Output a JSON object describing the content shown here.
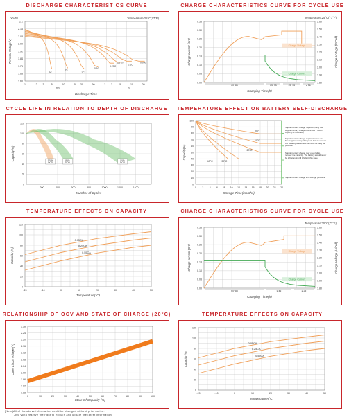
{
  "colors": {
    "frame": "#c8262b",
    "orange": "#f0a05a",
    "green": "#44aa55",
    "grid": "#888888",
    "band": "#f07b1c"
  },
  "titles": {
    "discharge": "DISCHARGE CHARACTERISTICS CURVE",
    "charge_cycle_1": "CHARGE CHARACTERISTICS CURVE FOR CYCLE USE",
    "cycle_life": "CYCLE LIFE IN RELATION TO DEPTH OF DISCHARGE",
    "self_discharge": "TEMPERATURE EFFECT ON BATTERY SELF-DISCHARGE",
    "capacity_1": "TEMPERATURE EFFECTS ON CAPACITY",
    "charge_cycle_2": "CHARGE CHARACTERISTICS CURVE FOR CYCLE USE",
    "ocv": "RELATIONSHIP OF OCV AND STATE OF CHARGE (20°C)",
    "capacity_2": "TEMPERATURE EFFECTS ON CAPACITY"
  },
  "notes": {
    "line1": "[Note]All of the above information could be changed without prior notice.",
    "line2": "JBS Volta reserve the right to explain and update the latest information"
  },
  "chart_data": [
    {
      "id": "discharge",
      "type": "line",
      "temp_label": "Temperature:25°C(77°F)",
      "xlabel": "Discharge Time",
      "ylabel": "Terminal Voltage(V)",
      "y_unit": "(V/Cell)",
      "ylim": [
        1.6,
        2.2
      ],
      "yticks": [
        "2.2",
        "2.16",
        "2.08",
        "2.00",
        "1.92",
        "1.84",
        "1.76",
        "1.68",
        "1.60"
      ],
      "xticks_min": [
        "1",
        "2",
        "3",
        "5",
        "10",
        "20",
        "30",
        "60"
      ],
      "xticks_h": [
        "2",
        "3",
        "5",
        "10",
        "20"
      ],
      "xunit_min": "min",
      "xunit_h": "h",
      "series": [
        {
          "name": "3C",
          "end_min": 5,
          "end_v": 1.72
        },
        {
          "name": "2C",
          "end_min": 13,
          "end_v": 1.73
        },
        {
          "name": "1C",
          "end_min": 35,
          "end_v": 1.72
        },
        {
          "name": "0.6C",
          "end_min": 80,
          "end_v": 1.74
        },
        {
          "name": "0.25C",
          "end_min": 210,
          "end_v": 1.78
        },
        {
          "name": "0.17C",
          "end_min": 330,
          "end_v": 1.79
        },
        {
          "name": "0.1C",
          "end_min": 600,
          "end_v": 1.8
        },
        {
          "name": "0.05C",
          "end_min": 1300,
          "end_v": 1.8
        }
      ]
    },
    {
      "id": "charge_cycle_1",
      "type": "line",
      "temp_label": "Temperature:25°C(77°F)",
      "xlabel": "Charging Time(h)",
      "ylabel_left": "Charge current (CA)",
      "ylabel_right": "Charge Voltage (V/Cell)",
      "ylim_left": [
        0,
        0.35
      ],
      "ylim_right": [
        1.8,
        2.6
      ],
      "yticks_left": [
        "0.35",
        "0.30",
        "0.25",
        "0.20",
        "0.15",
        "0.10",
        "0.05",
        "0.00"
      ],
      "yticks_right": [
        "2.60",
        "2.50",
        "2.40",
        "2.30",
        "2.20",
        "2.10",
        "2.00",
        "1.90",
        "1.80"
      ],
      "xsegments": [
        "60~85",
        "25~35",
        "25~35",
        "≥ 56"
      ],
      "series": [
        {
          "name": "Charge Voltage",
          "color": "orange"
        },
        {
          "name": "Charge Current",
          "color": "green"
        }
      ]
    },
    {
      "id": "cycle_life",
      "type": "area",
      "xlabel": "Number of Cycles",
      "ylabel": "Capacity(%)",
      "xlim": [
        0,
        1600
      ],
      "ylim": [
        0,
        120
      ],
      "xticks": [
        "200",
        "400",
        "600",
        "800",
        "1000",
        "1200",
        "1400"
      ],
      "yticks": [
        "120",
        "100",
        "80",
        "60",
        "40",
        "20",
        "0"
      ],
      "series": [
        {
          "name": "100% DOD",
          "end_cycles": 350
        },
        {
          "name": "80% DOD",
          "end_cycles": 600
        },
        {
          "name": "50% DOD",
          "end_cycles": 1400
        }
      ]
    },
    {
      "id": "self_discharge",
      "type": "line",
      "xlabel": "Storage Time(months)",
      "ylabel": "Capacity(%)",
      "xlim": [
        0,
        24
      ],
      "ylim": [
        0,
        100
      ],
      "xticks": [
        "0",
        "2",
        "4",
        "6",
        "8",
        "10",
        "12",
        "14",
        "16",
        "18",
        "20",
        "22",
        "24"
      ],
      "yticks": [
        "100",
        "90",
        "80",
        "70",
        "60",
        "50",
        "40",
        "30",
        "20",
        "10",
        "0"
      ],
      "series": [
        {
          "name": "0°C",
          "end_month": 18
        },
        {
          "name": "10°C",
          "end_month": 18
        },
        {
          "name": "20°C",
          "end_month": 18
        },
        {
          "name": "30°C",
          "end_month": 12
        },
        {
          "name": "40°C",
          "end_month": 9
        }
      ],
      "annotations": [
        "Supplementary charge required (Carry out supplementary charge before use if 100% capacity is required.)",
        "Supplementary charge required before use. The supplementary charge will help to recover the capacity and should be made as early as possible.",
        "Supplementary charge may often fail to recover the capacity. The battery should never be left standing till it falls in this zone.",
        "Supplementary charge and storage guideline"
      ]
    },
    {
      "id": "capacity_1",
      "type": "line",
      "xlabel": "Temperature(°C)",
      "ylabel": "Capacity (%)",
      "xlim": [
        -20,
        50
      ],
      "ylim": [
        0,
        120
      ],
      "xticks": [
        "-20",
        "-10",
        "0",
        "10",
        "20",
        "30",
        "40",
        "50"
      ],
      "yticks": [
        "120",
        "100",
        "80",
        "60",
        "40",
        "20",
        "0"
      ],
      "series": [
        {
          "name": "0.05CA",
          "x": [
            -20,
            0,
            20,
            40,
            50
          ],
          "y": [
            62,
            80,
            93,
            102,
            106
          ]
        },
        {
          "name": "0.25CA",
          "x": [
            -20,
            0,
            20,
            40,
            50
          ],
          "y": [
            48,
            66,
            80,
            90,
            94
          ]
        },
        {
          "name": "0.55CA",
          "x": [
            -20,
            0,
            20,
            40,
            50
          ],
          "y": [
            32,
            50,
            65,
            76,
            80
          ]
        }
      ]
    },
    {
      "id": "charge_cycle_2",
      "type": "line",
      "temp_label": "Temperature:25°C(77°F)",
      "xlabel": "Charging Time(h)",
      "ylabel_left": "Charge current (CA)",
      "ylabel_right": "Charge Voltage (V/Cell)",
      "ylim_left": [
        0,
        0.35
      ],
      "ylim_right": [
        1.8,
        2.6
      ],
      "yticks_left": [
        "0.35",
        "0.30",
        "0.25",
        "0.20",
        "0.15",
        "0.10",
        "0.05",
        "0.00"
      ],
      "yticks_right": [
        "2.60",
        "2.50",
        "2.40",
        "2.30",
        "2.20",
        "2.10",
        "2.00",
        "1.90",
        "1.80"
      ],
      "xsegments": [
        "60~85",
        "≤ 46",
        "≥ 25"
      ],
      "series": [
        {
          "name": "Charge Voltage",
          "color": "orange"
        },
        {
          "name": "Charge Current",
          "color": "green"
        }
      ]
    },
    {
      "id": "ocv",
      "type": "line",
      "xlabel": "State Of Capacity (%)",
      "ylabel": "Open Circuit Voltage (V)",
      "xlim": [
        0,
        100
      ],
      "ylim": [
        1.88,
        2.28
      ],
      "xticks": [
        "0",
        "10",
        "20",
        "30",
        "40",
        "50",
        "60",
        "70",
        "80",
        "90",
        "100"
      ],
      "yticks": [
        "2.28",
        "2.24",
        "2.20",
        "2.16",
        "2.12",
        "2.08",
        "2.04",
        "2.00",
        "1.96",
        "1.92",
        "1.88"
      ],
      "series": [
        {
          "x": [
            0,
            100
          ],
          "y": [
            1.95,
            2.19
          ]
        }
      ]
    },
    {
      "id": "capacity_2",
      "type": "line",
      "xlabel": "Temperature(°C)",
      "ylabel": "Capacity (%)",
      "xlim": [
        -20,
        50
      ],
      "ylim": [
        0,
        120
      ],
      "xticks": [
        "-20",
        "-10",
        "0",
        "10",
        "20",
        "30",
        "40",
        "50"
      ],
      "yticks": [
        "120",
        "100",
        "80",
        "60",
        "40",
        "20",
        "0"
      ],
      "series": [
        {
          "name": "0.05CA",
          "x": [
            -20,
            0,
            20,
            40,
            50
          ],
          "y": [
            62,
            80,
            93,
            102,
            106
          ]
        },
        {
          "name": "0.25CA",
          "x": [
            -20,
            0,
            20,
            40,
            50
          ],
          "y": [
            48,
            66,
            80,
            90,
            94
          ]
        },
        {
          "name": "0.55CA",
          "x": [
            -20,
            0,
            20,
            40,
            50
          ],
          "y": [
            32,
            50,
            65,
            76,
            80
          ]
        }
      ]
    }
  ]
}
